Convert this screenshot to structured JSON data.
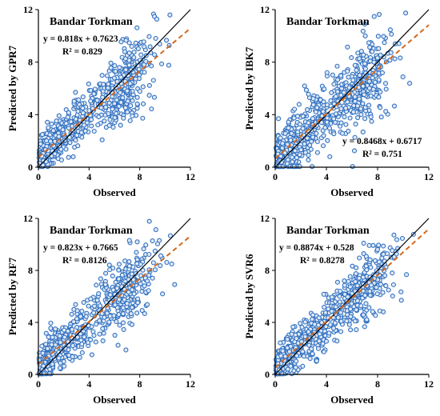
{
  "figure": {
    "panel_title": "Bandar Torkman",
    "xlabel": "Observed",
    "colors": {
      "points_stroke": "#2f6fc0",
      "points_fill": "#dfe9f6",
      "identity_line": "#000000",
      "fit_line": "#d2691e",
      "axes": "#000000"
    }
  },
  "chart_data": [
    {
      "type": "scatter",
      "title": "Bandar Torkman",
      "xlabel": "Observed",
      "ylabel": "Predicted by GPR7",
      "xlim": [
        0,
        12
      ],
      "ylim": [
        0,
        12
      ],
      "xticks": [
        "0",
        "4",
        "8",
        "12"
      ],
      "yticks": [
        "0",
        "4",
        "8",
        "12"
      ],
      "fit": {
        "slope": 0.818,
        "intercept": 0.7623,
        "r2": 0.829
      },
      "equation": "y = 0.818x + 0.7623",
      "r2_label": "R² = 0.829",
      "annotation_position": "top-left",
      "spread": 1.25,
      "n_points": 700
    },
    {
      "type": "scatter",
      "title": "Bandar Torkman",
      "xlabel": "Observed",
      "ylabel": "Predicted by IBK7",
      "xlim": [
        0,
        12
      ],
      "ylim": [
        0,
        12
      ],
      "xticks": [
        "0",
        "4",
        "8",
        "12"
      ],
      "yticks": [
        "0",
        "4",
        "8",
        "12"
      ],
      "fit": {
        "slope": 0.8468,
        "intercept": 0.6717,
        "r2": 0.751
      },
      "equation": "y = 0.8468x + 0.6717",
      "r2_label": "R² = 0.751",
      "annotation_position": "bottom-right",
      "spread": 1.55,
      "n_points": 700
    },
    {
      "type": "scatter",
      "title": "Bandar Torkman",
      "xlabel": "Observed",
      "ylabel": "Predicted by RF7",
      "xlim": [
        0,
        12
      ],
      "ylim": [
        0,
        12
      ],
      "xticks": [
        "0",
        "4",
        "8",
        "12"
      ],
      "yticks": [
        "0",
        "4",
        "8",
        "12"
      ],
      "fit": {
        "slope": 0.823,
        "intercept": 0.7665,
        "r2": 0.8126
      },
      "equation": "y = 0.823x + 0.7665",
      "r2_label": "R² = 0.8126",
      "annotation_position": "top-left",
      "spread": 1.3,
      "n_points": 700
    },
    {
      "type": "scatter",
      "title": "Bandar Torkman",
      "xlabel": "Observed",
      "ylabel": "Predicted by SVR6",
      "xlim": [
        0,
        12
      ],
      "ylim": [
        0,
        12
      ],
      "xticks": [
        "0",
        "4",
        "8",
        "12"
      ],
      "yticks": [
        "0",
        "4",
        "8",
        "12"
      ],
      "fit": {
        "slope": 0.8874,
        "intercept": 0.528,
        "r2": 0.8278
      },
      "equation": "y = 0.8874x + 0.528",
      "r2_label": "R² = 0.8278",
      "annotation_position": "top-left",
      "spread": 1.25,
      "n_points": 700
    }
  ]
}
